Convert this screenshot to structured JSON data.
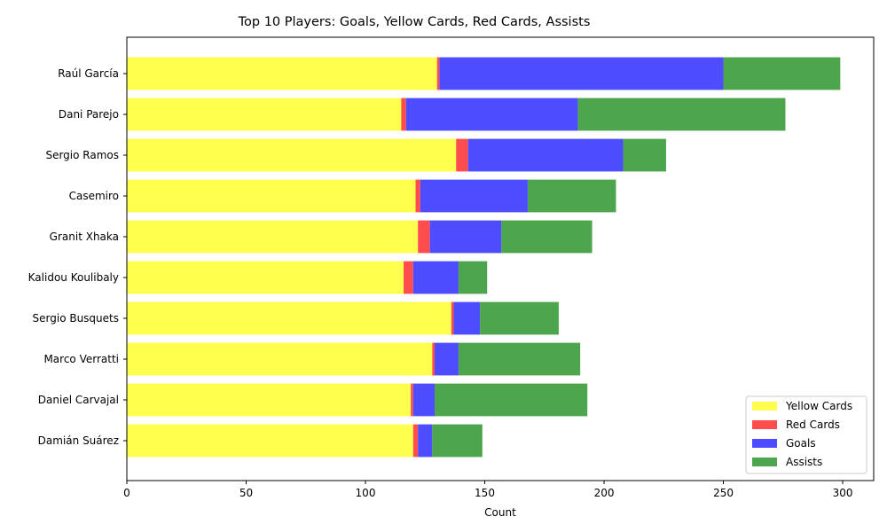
{
  "chart_data": {
    "type": "bar",
    "orientation": "horizontal",
    "stacked": true,
    "title": "Top 10 Players: Goals, Yellow Cards, Red Cards, Assists",
    "xlabel": "Count",
    "ylabel": "",
    "xlim": [
      0,
      313
    ],
    "xticks": [
      0,
      50,
      100,
      150,
      200,
      250,
      300
    ],
    "grid": false,
    "legend_position": "bottom-right",
    "categories": [
      "Raúl García",
      "Dani Parejo",
      "Sergio Ramos",
      "Casemiro",
      "Granit Xhaka",
      "Kalidou Koulibaly",
      "Sergio Busquets",
      "Marco Verratti",
      "Daniel Carvajal",
      "Damián Suárez"
    ],
    "series": [
      {
        "name": "Yellow Cards",
        "color": "#ffff4d",
        "values": [
          130,
          115,
          138,
          121,
          122,
          116,
          136,
          128,
          119,
          120
        ]
      },
      {
        "name": "Red Cards",
        "color": "#ff4d4d",
        "values": [
          1,
          2,
          5,
          2,
          5,
          4,
          1,
          1,
          1,
          2
        ]
      },
      {
        "name": "Goals",
        "color": "#4d4dff",
        "values": [
          119,
          72,
          65,
          45,
          30,
          19,
          11,
          10,
          9,
          6
        ]
      },
      {
        "name": "Assists",
        "color": "#4da64d",
        "values": [
          49,
          87,
          18,
          37,
          38,
          12,
          33,
          51,
          64,
          21
        ]
      }
    ]
  }
}
